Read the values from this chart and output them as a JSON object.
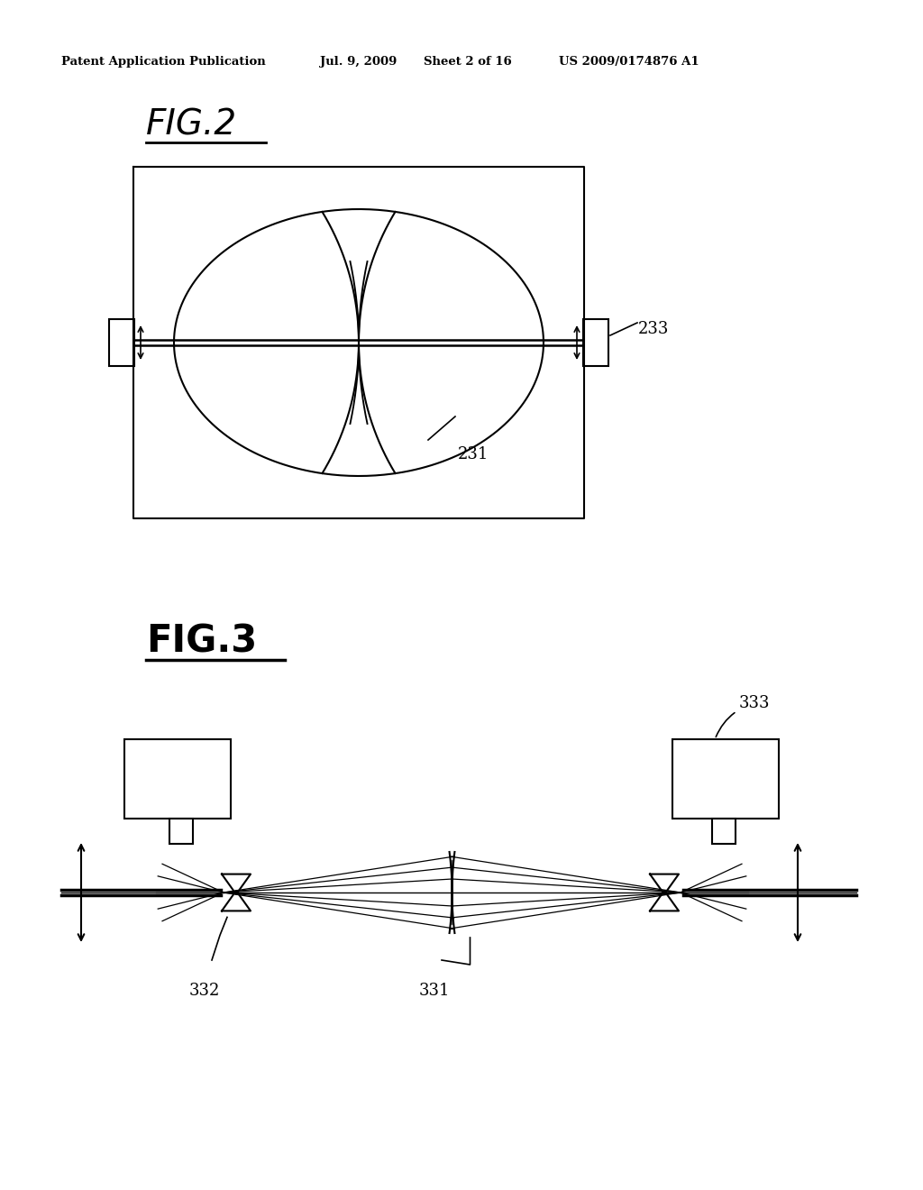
{
  "bg_color": "#ffffff",
  "header_text": "Patent Application Publication",
  "header_date": "Jul. 9, 2009",
  "header_sheet": "Sheet 2 of 16",
  "header_patent": "US 2009/0174876 A1",
  "fig2_title": "FIG.2",
  "fig3_title": "FIG.3",
  "label_231": "231",
  "label_233": "233",
  "label_331": "331",
  "label_332": "332",
  "label_333": "333",
  "line_color": "#000000",
  "line_width": 1.5
}
